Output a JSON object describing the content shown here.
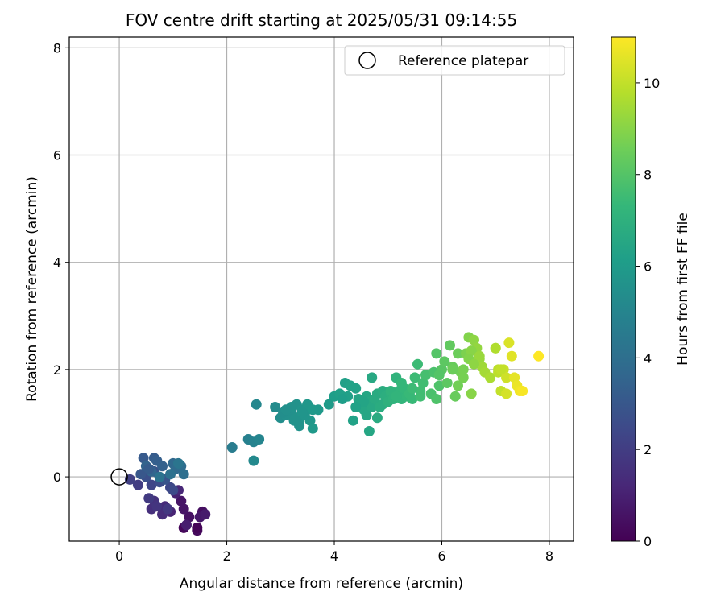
{
  "chart_data": {
    "type": "scatter",
    "title": "FOV centre drift starting at 2025/05/31 09:14:55",
    "xlabel": "Angular distance from reference (arcmin)",
    "ylabel": "Rotation from reference (arcmin)",
    "xlim": [
      -0.93,
      8.45
    ],
    "ylim": [
      -1.2,
      8.2
    ],
    "xticks": [
      0,
      2,
      4,
      6,
      8
    ],
    "yticks": [
      0,
      2,
      4,
      6,
      8
    ],
    "grid": true,
    "legend": {
      "placement": "top-right",
      "entries": [
        "Reference platepar"
      ]
    },
    "reference_point": {
      "x": 0,
      "y": 0,
      "label": "Reference platepar",
      "marker": "open-circle",
      "color": "#000000"
    },
    "colorbar": {
      "label": "Hours from first FF file",
      "range": [
        0,
        11
      ],
      "ticks": [
        0,
        2,
        4,
        6,
        8,
        10
      ],
      "colormap": "viridis"
    },
    "colormap_stops": [
      "#440154",
      "#482878",
      "#3e4989",
      "#31688e",
      "#26828e",
      "#1f9e89",
      "#35b779",
      "#6ece58",
      "#b5de2b",
      "#fde725"
    ],
    "series": [
      {
        "x": [
          1.2,
          1.45,
          1.55,
          1.3,
          1.15,
          1.5,
          1.6,
          1.25,
          1.05,
          0.95,
          1.1,
          0.85,
          0.8,
          1.45,
          1.2
        ],
        "y": [
          -0.95,
          -1.0,
          -0.65,
          -0.75,
          -0.45,
          -0.75,
          -0.7,
          -0.9,
          -0.3,
          -0.65,
          -0.25,
          -0.55,
          -0.7,
          -0.95,
          -0.6
        ],
        "c": [
          0.2,
          0.3,
          0.4,
          0.5,
          0.6,
          0.7,
          0.8,
          0.9,
          1.0,
          1.1,
          1.2,
          1.3,
          1.4,
          0.1,
          0.6
        ]
      },
      {
        "x": [
          0.6,
          0.65,
          0.7,
          0.9,
          0.55,
          0.35,
          0.2,
          0.45,
          0.6,
          0.95,
          1.0,
          0.75,
          0.5,
          0.65,
          0.85,
          0.4
        ],
        "y": [
          -0.6,
          -0.45,
          -0.55,
          -0.6,
          -0.4,
          -0.15,
          -0.05,
          0.05,
          -0.15,
          -0.2,
          -0.25,
          -0.1,
          0.0,
          0.1,
          -0.05,
          0.05
        ],
        "c": [
          1.5,
          1.6,
          1.7,
          1.8,
          1.9,
          2.0,
          2.1,
          2.2,
          2.3,
          2.4,
          2.5,
          2.6,
          2.7,
          2.8,
          2.9,
          3.0
        ]
      },
      {
        "x": [
          0.45,
          0.65,
          0.7,
          0.8,
          0.5,
          0.6,
          1.0,
          1.05,
          1.15,
          1.2,
          0.95,
          0.75,
          0.55,
          1.1
        ],
        "y": [
          0.35,
          0.35,
          0.3,
          0.2,
          0.2,
          0.1,
          0.25,
          0.15,
          0.2,
          0.05,
          0.05,
          0.0,
          0.15,
          0.25
        ],
        "c": [
          3.1,
          3.2,
          3.3,
          3.4,
          3.5,
          3.6,
          3.7,
          3.8,
          3.9,
          4.0,
          4.1,
          4.2,
          3.2,
          4.3
        ]
      },
      {
        "x": [
          2.1,
          2.4,
          2.5,
          2.6,
          2.55,
          2.5
        ],
        "y": [
          0.55,
          0.7,
          0.65,
          0.7,
          1.35,
          0.3
        ],
        "c": [
          4.6,
          4.8,
          4.9,
          5.0,
          5.1,
          5.2
        ]
      },
      {
        "x": [
          2.9,
          3.0,
          3.1,
          3.2,
          3.25,
          3.3,
          3.35,
          3.4,
          3.5,
          3.55,
          3.6,
          3.7,
          3.05,
          3.15,
          3.3,
          3.45,
          3.2,
          3.5,
          3.1,
          3.4,
          3.35,
          3.6
        ],
        "y": [
          1.3,
          1.1,
          1.15,
          1.2,
          1.05,
          1.35,
          1.0,
          1.25,
          1.3,
          1.05,
          0.9,
          1.25,
          1.2,
          1.25,
          1.1,
          1.15,
          1.3,
          1.35,
          1.25,
          1.2,
          0.95,
          1.25
        ],
        "c": [
          5.3,
          5.4,
          5.5,
          5.5,
          5.6,
          5.6,
          5.7,
          5.7,
          5.8,
          5.8,
          5.9,
          5.9,
          5.4,
          5.5,
          5.6,
          5.7,
          5.6,
          5.8,
          5.5,
          5.7,
          5.6,
          5.9
        ]
      },
      {
        "x": [
          3.9,
          4.0,
          4.1,
          4.2,
          4.3,
          4.4,
          4.45,
          4.5,
          4.55,
          4.6,
          4.65,
          4.7,
          4.75,
          4.8,
          4.85,
          4.9,
          4.95,
          4.25,
          4.35,
          4.15,
          4.6,
          4.7,
          4.8,
          4.55,
          4.4,
          4.65,
          4.9
        ],
        "y": [
          1.35,
          1.5,
          1.55,
          1.75,
          1.7,
          1.65,
          1.45,
          1.35,
          1.25,
          1.5,
          1.4,
          1.3,
          1.45,
          1.55,
          1.3,
          1.6,
          1.5,
          1.5,
          1.05,
          1.45,
          1.15,
          1.85,
          1.1,
          1.4,
          1.3,
          0.85,
          1.35
        ],
        "c": [
          6.0,
          6.1,
          6.2,
          6.2,
          6.3,
          6.3,
          6.4,
          6.4,
          6.5,
          6.5,
          6.6,
          6.6,
          6.7,
          6.7,
          6.8,
          6.8,
          6.9,
          6.2,
          6.3,
          6.1,
          6.5,
          6.6,
          6.7,
          6.4,
          6.3,
          6.5,
          6.8
        ]
      },
      {
        "x": [
          5.0,
          5.05,
          5.1,
          5.15,
          5.2,
          5.25,
          5.3,
          5.35,
          5.4,
          5.45,
          5.5,
          5.55,
          5.6,
          5.65,
          5.7,
          5.8,
          5.85,
          5.9,
          5.95,
          5.05,
          5.25,
          5.45,
          5.6,
          5.15
        ],
        "y": [
          1.4,
          1.55,
          1.45,
          1.85,
          1.6,
          1.45,
          1.65,
          1.5,
          1.55,
          1.45,
          1.85,
          2.1,
          1.6,
          1.75,
          1.9,
          1.55,
          1.95,
          1.45,
          1.7,
          1.6,
          1.75,
          1.65,
          1.5,
          1.5
        ],
        "c": [
          7.0,
          7.0,
          7.1,
          7.1,
          7.2,
          7.2,
          7.3,
          7.3,
          7.4,
          7.4,
          7.5,
          7.5,
          7.6,
          7.6,
          7.7,
          7.8,
          7.8,
          7.9,
          7.9,
          7.1,
          7.3,
          7.5,
          7.6,
          7.2
        ]
      },
      {
        "x": [
          5.9,
          6.0,
          6.1,
          6.15,
          6.2,
          6.25,
          6.3,
          6.35,
          6.4,
          6.45,
          6.5,
          6.55,
          6.6,
          6.65,
          6.7,
          6.75,
          6.8,
          5.95,
          6.05,
          6.2,
          6.4,
          6.55,
          6.7,
          6.3,
          6.5,
          6.6
        ],
        "y": [
          2.3,
          2.0,
          1.75,
          2.45,
          2.05,
          1.5,
          2.3,
          1.95,
          2.0,
          2.3,
          2.6,
          1.55,
          2.55,
          2.4,
          2.2,
          2.05,
          1.95,
          1.9,
          2.15,
          2.0,
          1.85,
          2.35,
          2.25,
          1.7,
          2.2,
          2.1
        ],
        "c": [
          8.0,
          8.1,
          8.2,
          8.3,
          8.4,
          8.4,
          8.5,
          8.6,
          8.7,
          8.8,
          8.9,
          9.0,
          9.1,
          9.2,
          9.3,
          9.4,
          9.5,
          8.0,
          8.2,
          8.5,
          8.7,
          9.0,
          9.3,
          8.6,
          8.9,
          9.1
        ]
      },
      {
        "x": [
          6.9,
          7.0,
          7.05,
          7.1,
          7.15,
          7.2,
          7.25,
          7.3,
          7.35,
          7.4,
          7.45,
          7.5,
          7.8,
          7.05,
          7.1,
          7.2,
          7.0
        ],
        "y": [
          1.85,
          2.4,
          1.95,
          1.6,
          2.0,
          1.85,
          2.5,
          2.25,
          1.85,
          1.7,
          1.6,
          1.6,
          2.25,
          2.0,
          2.0,
          1.55,
          2.4
        ],
        "c": [
          9.6,
          9.8,
          9.9,
          10.0,
          10.1,
          10.2,
          10.4,
          10.5,
          10.6,
          10.7,
          10.8,
          10.9,
          11.0,
          9.9,
          10.0,
          10.3,
          9.7
        ]
      }
    ]
  }
}
